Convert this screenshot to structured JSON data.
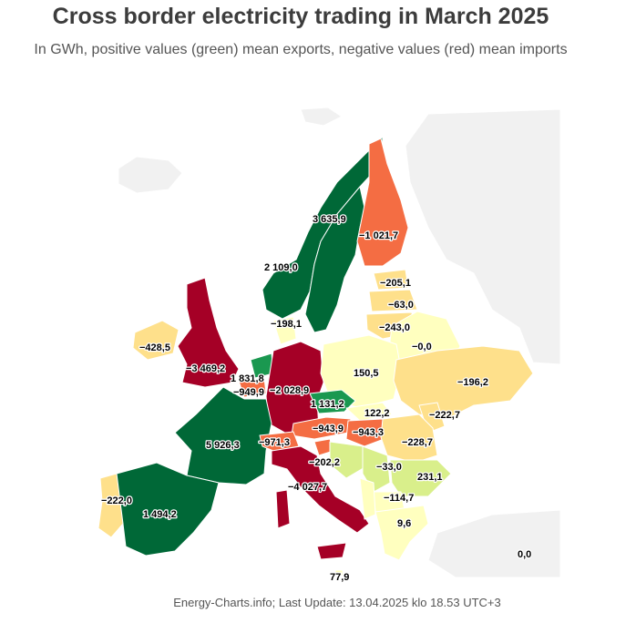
{
  "title": "Cross border electricity trading in March 2025",
  "subtitle": "In GWh, positive values (green) mean exports, negative values (red) mean imports",
  "footer": "Energy-Charts.info; Last Update: 13.04.2025 klo 18.53 UTC+3",
  "colors": {
    "dark_green": "#006837",
    "mid_green": "#1a9850",
    "light_green": "#d9ef8b",
    "pale_yellow": "#ffffbf",
    "light_orange": "#fee08b",
    "orange": "#f46d43",
    "dark_red": "#a50026",
    "no_data": "#f1f1f1"
  },
  "regions": [
    {
      "id": "norway",
      "label": "2 109,0",
      "value": 2109.0
    },
    {
      "id": "sweden",
      "label": "3 635,9",
      "value": 3635.9
    },
    {
      "id": "finland",
      "label": "−1 021,7",
      "value": -1021.7
    },
    {
      "id": "estonia",
      "label": "−205,1",
      "value": -205.1
    },
    {
      "id": "latvia",
      "label": "−63,0",
      "value": -63.0
    },
    {
      "id": "lithuania",
      "label": "−243,0",
      "value": -243.0
    },
    {
      "id": "belarus",
      "label": "−0,0",
      "value": 0.0
    },
    {
      "id": "denmark",
      "label": "−198,1",
      "value": -198.1
    },
    {
      "id": "ireland",
      "label": "−428,5",
      "value": -428.5
    },
    {
      "id": "great-britain",
      "label": "−3 469,2",
      "value": -3469.2
    },
    {
      "id": "netherlands",
      "label": "1 831,8",
      "value": 1831.8
    },
    {
      "id": "belgium",
      "label": "−949,9",
      "value": -949.9
    },
    {
      "id": "germany",
      "label": "−2 028,9",
      "value": -2028.9
    },
    {
      "id": "poland",
      "label": "150,5",
      "value": 150.5
    },
    {
      "id": "ukraine",
      "label": "−196,2",
      "value": -196.2
    },
    {
      "id": "czechia",
      "label": "1 131,2",
      "value": 1131.2
    },
    {
      "id": "slovakia",
      "label": "122,2",
      "value": 122.2
    },
    {
      "id": "moldova",
      "label": "−222,7",
      "value": -222.7
    },
    {
      "id": "austria",
      "label": "−943,9",
      "value": -943.9
    },
    {
      "id": "hungary",
      "label": "−943,3",
      "value": -943.3
    },
    {
      "id": "romania",
      "label": "−228,7",
      "value": -228.7
    },
    {
      "id": "france",
      "label": "5 926,3",
      "value": 5926.3
    },
    {
      "id": "switzerland",
      "label": "−971,3",
      "value": -971.3
    },
    {
      "id": "slovenia",
      "label": "−202,2",
      "value": -202.2
    },
    {
      "id": "serbia",
      "label": "−33,0",
      "value": -33.0
    },
    {
      "id": "bulgaria",
      "label": "231,1",
      "value": 231.1
    },
    {
      "id": "italy",
      "label": "−4 027,7",
      "value": -4027.7
    },
    {
      "id": "north-macedonia",
      "label": "−114,7",
      "value": -114.7
    },
    {
      "id": "greece",
      "label": "9,6",
      "value": 9.6
    },
    {
      "id": "spain",
      "label": "1 494,2",
      "value": 1494.2
    },
    {
      "id": "portugal",
      "label": "−222,0",
      "value": -222.0
    },
    {
      "id": "turkey",
      "label": "0,0",
      "value": 0.0
    },
    {
      "id": "malta",
      "label": "77,9",
      "value": 77.9
    }
  ]
}
